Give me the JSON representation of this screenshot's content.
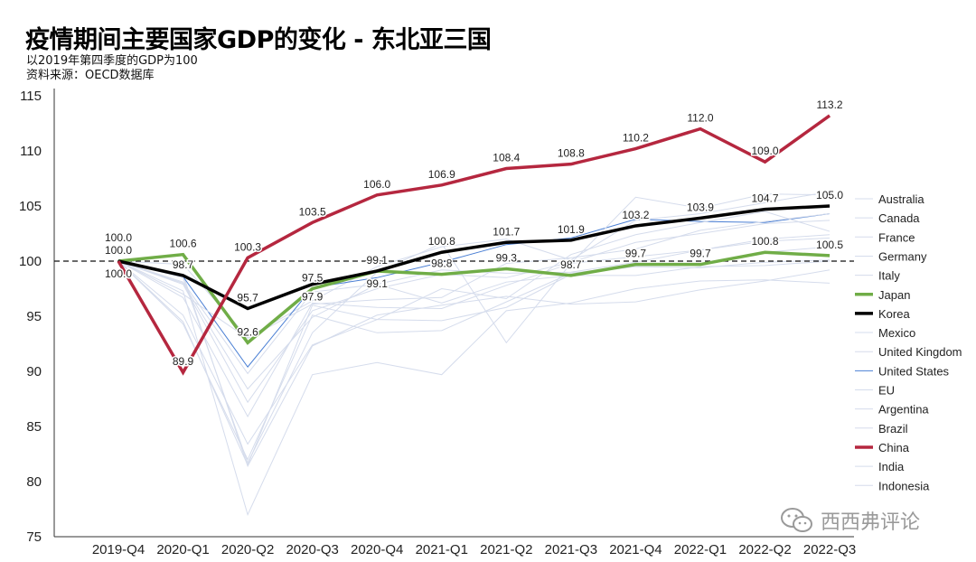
{
  "title": "疫情期间主要国家GDP的变化 - 东北亚三国",
  "subtitle1": "以2019年第四季度的GDP为100",
  "subtitle2": "资料来源：OECD数据库",
  "watermark": "西西弗评论",
  "watermark_icon": "wechat-icon",
  "chart_data": {
    "type": "line",
    "title": "疫情期间主要国家GDP的变化 - 东北亚三国",
    "categories": [
      "2019-Q4",
      "2020-Q1",
      "2020-Q2",
      "2020-Q3",
      "2020-Q4",
      "2021-Q1",
      "2021-Q2",
      "2021-Q3",
      "2021-Q4",
      "2022-Q1",
      "2022-Q2",
      "2022-Q3"
    ],
    "ylim": [
      75,
      115
    ],
    "yticks": [
      75,
      80,
      85,
      90,
      95,
      100,
      105,
      110,
      115
    ],
    "reference_line": 100,
    "grid": false,
    "legend": "right",
    "series": [
      {
        "name": "Australia",
        "color": "#d5dcec",
        "width": 1,
        "values": [
          100,
          99.7,
          93.1,
          96.4,
          99.5,
          101.3,
          102.0,
          100.1,
          103.7,
          104.3,
          105.3,
          106.3
        ]
      },
      {
        "name": "Canada",
        "color": "#d5dcec",
        "width": 1,
        "values": [
          100,
          97.9,
          87.2,
          95.5,
          97.5,
          98.8,
          98.5,
          99.9,
          101.7,
          102.5,
          103.4,
          103.7
        ]
      },
      {
        "name": "France",
        "color": "#d5dcec",
        "width": 1,
        "values": [
          100,
          94.5,
          81.5,
          96.0,
          94.7,
          94.6,
          95.8,
          98.8,
          99.5,
          99.4,
          99.9,
          100.1
        ]
      },
      {
        "name": "Germany",
        "color": "#d5dcec",
        "width": 1,
        "values": [
          100,
          98.1,
          89.8,
          97.2,
          97.9,
          96.2,
          98.1,
          98.7,
          98.7,
          99.5,
          99.6,
          100.0
        ]
      },
      {
        "name": "Italy",
        "color": "#d5dcec",
        "width": 1,
        "values": [
          100,
          94.3,
          82.0,
          95.1,
          93.5,
          93.7,
          96.3,
          98.9,
          99.6,
          99.7,
          100.8,
          101.3
        ]
      },
      {
        "name": "Japan",
        "color": "#70ad47",
        "width": 3.5,
        "labels": true,
        "values": [
          100,
          100.6,
          92.6,
          97.5,
          99.1,
          98.8,
          99.3,
          98.7,
          99.7,
          99.7,
          100.8,
          100.5
        ]
      },
      {
        "name": "Korea",
        "color": "#000000",
        "width": 3.5,
        "labels": true,
        "values": [
          100,
          98.7,
          95.7,
          97.9,
          99.1,
          100.8,
          101.7,
          101.9,
          103.2,
          103.9,
          104.7,
          105.0
        ]
      },
      {
        "name": "Mexico",
        "color": "#d5dcec",
        "width": 1,
        "values": [
          100,
          98.8,
          81.4,
          92.3,
          95.1,
          96.0,
          96.8,
          96.1,
          96.3,
          97.4,
          98.2,
          99.2
        ]
      },
      {
        "name": "United Kingdom",
        "color": "#d5dcec",
        "width": 1,
        "values": [
          100,
          97.3,
          77.0,
          89.7,
          90.8,
          89.7,
          95.5,
          96.2,
          97.5,
          98.2,
          98.3,
          98.0
        ]
      },
      {
        "name": "United States",
        "color": "#4a7fd4",
        "width": 1,
        "values": [
          100,
          98.6,
          90.4,
          97.6,
          98.5,
          99.9,
          101.5,
          102.1,
          103.8,
          103.6,
          103.5,
          104.3
        ]
      },
      {
        "name": "EU",
        "color": "#d5dcec",
        "width": 1,
        "values": [
          100,
          96.7,
          85.9,
          96.2,
          95.8,
          95.7,
          97.8,
          99.8,
          100.4,
          101.0,
          101.8,
          102.1
        ]
      },
      {
        "name": "Argentina",
        "color": "#d5dcec",
        "width": 1,
        "values": [
          100,
          95.1,
          83.4,
          92.4,
          94.7,
          97.5,
          96.6,
          100.6,
          102.4,
          103.5,
          104.5,
          102.7
        ]
      },
      {
        "name": "Brazil",
        "color": "#d5dcec",
        "width": 1,
        "values": [
          100,
          98.0,
          88.4,
          94.9,
          97.9,
          99.2,
          98.9,
          99.0,
          99.9,
          101.0,
          102.0,
          102.4
        ]
      },
      {
        "name": "China",
        "color": "#b5273f",
        "width": 3.5,
        "labels": true,
        "values": [
          100,
          89.9,
          100.3,
          103.5,
          106.0,
          106.9,
          108.4,
          108.8,
          110.2,
          112.0,
          109.0,
          113.2
        ]
      },
      {
        "name": "India",
        "color": "#d5dcec",
        "width": 1,
        "values": [
          100,
          98.5,
          81.7,
          93.5,
          99.0,
          101.6,
          92.6,
          99.8,
          105.8,
          104.8,
          106.1,
          106.0
        ]
      },
      {
        "name": "Indonesia",
        "color": "#d5dcec",
        "width": 1,
        "values": [
          100,
          97.0,
          93.0,
          96.1,
          96.5,
          96.7,
          99.8,
          100.3,
          101.1,
          102.8,
          103.6,
          104.3
        ]
      }
    ]
  }
}
